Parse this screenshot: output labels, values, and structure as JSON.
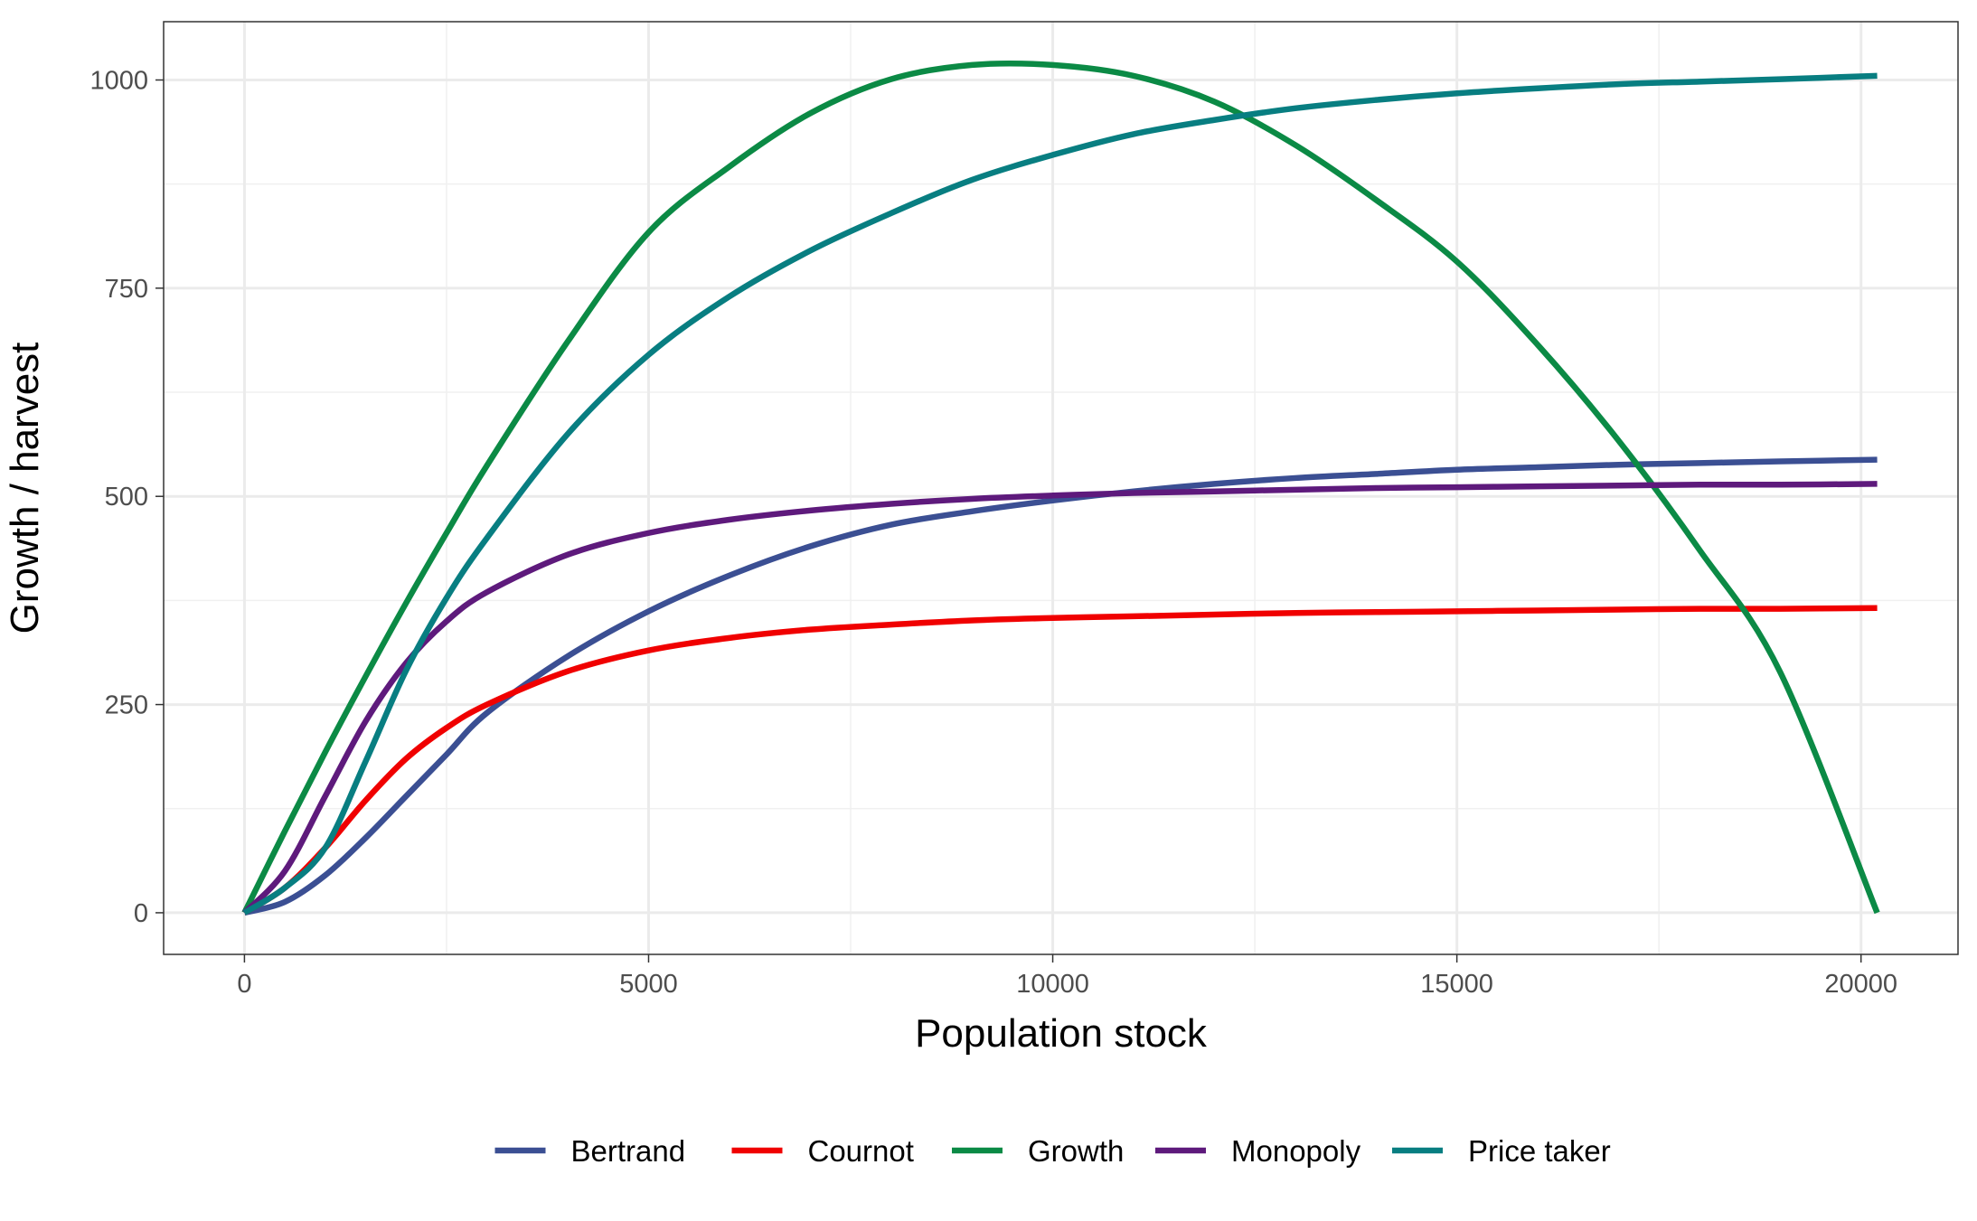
{
  "chart_data": {
    "type": "line",
    "xlabel": "Population stock",
    "ylabel": "Growth / harvest",
    "xlim": [
      -1000,
      21200
    ],
    "ylim": [
      -50,
      1070
    ],
    "x_ticks": [
      0,
      5000,
      10000,
      15000,
      20000
    ],
    "x_tick_labels": [
      "0",
      "5000",
      "10000",
      "15000",
      "20000"
    ],
    "y_ticks": [
      0,
      250,
      500,
      750,
      1000
    ],
    "y_tick_labels": [
      "0",
      "250",
      "500",
      "750",
      "1000"
    ],
    "grid": true,
    "legend_position": "bottom",
    "x": [
      0,
      500,
      1000,
      1500,
      2000,
      2500,
      3000,
      4000,
      5000,
      6000,
      7000,
      8000,
      9000,
      10000,
      11000,
      12000,
      13000,
      14000,
      15000,
      16000,
      17000,
      18000,
      19000,
      20200
    ],
    "series": [
      {
        "name": "Bertrand",
        "color": "#3b4f93",
        "values": [
          0,
          13,
          45,
          90,
          140,
          190,
          240,
          308,
          362,
          405,
          440,
          466,
          482,
          495,
          506,
          515,
          522,
          527,
          532,
          535,
          538,
          540,
          542,
          544
        ]
      },
      {
        "name": "Cournot",
        "color": "#f00000",
        "values": [
          0,
          30,
          78,
          135,
          185,
          222,
          250,
          290,
          315,
          330,
          340,
          346,
          351,
          354,
          356,
          358,
          360,
          361,
          362,
          363,
          364,
          365,
          365,
          366
        ]
      },
      {
        "name": "Growth",
        "color": "#0b8a45",
        "values": [
          0,
          98,
          193,
          284,
          372,
          456,
          537,
          686,
          817,
          896,
          960,
          1001,
          1018,
          1018,
          1005,
          974,
          922,
          856,
          782,
          682,
          567,
          436,
          289,
          0
        ]
      },
      {
        "name": "Monopoly",
        "color": "#5e1a7c",
        "values": [
          0,
          50,
          140,
          230,
          300,
          350,
          385,
          430,
          456,
          472,
          483,
          491,
          497,
          501,
          504,
          506,
          508,
          510,
          511,
          512,
          513,
          514,
          514,
          515
        ]
      },
      {
        "name": "Price taker",
        "color": "#087e81",
        "values": [
          0,
          30,
          78,
          182,
          291,
          378,
          450,
          575,
          670,
          740,
          795,
          840,
          880,
          910,
          935,
          952,
          966,
          976,
          984,
          990,
          995,
          998,
          1001,
          1005
        ]
      }
    ]
  }
}
